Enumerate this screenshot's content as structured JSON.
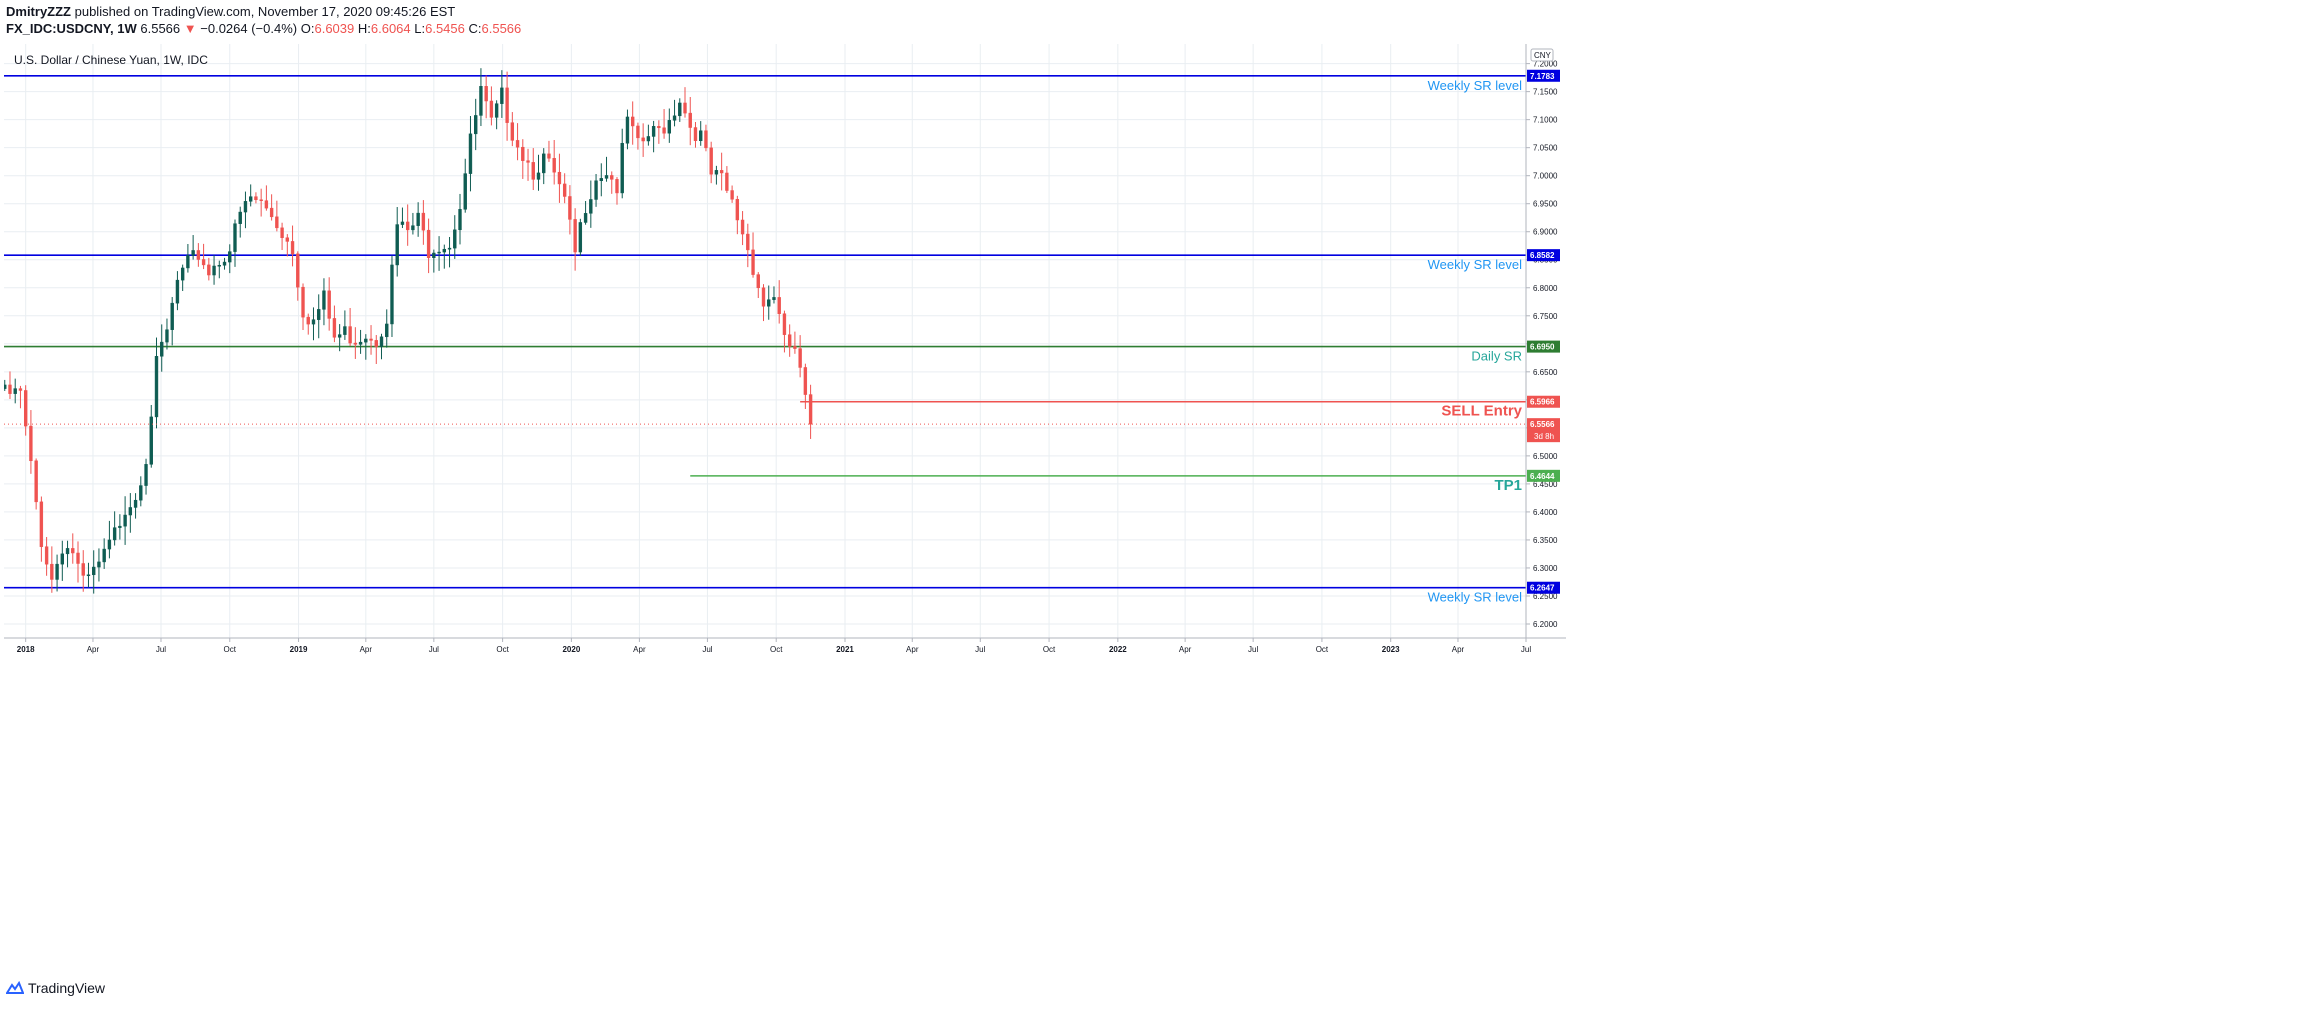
{
  "header": {
    "author": "DmitryZZZ",
    "published": " published on TradingView.com, November 17, 2020 09:45:26 EST",
    "symbol": "FX_IDC:USDCNY, 1W",
    "last_price": "6.5566",
    "change_arrow": "▼",
    "change": "−0.0264 (−0.4%)",
    "o_label": "O:",
    "o_value": "6.6039",
    "h_label": "H:",
    "h_value": "6.6064",
    "l_label": "L:",
    "l_value": "6.5456",
    "c_label": "C:",
    "c_value": "6.5566"
  },
  "footer": {
    "brand": "TradingView"
  },
  "colors": {
    "up": "#26a69a",
    "up_body": "#0f5c52",
    "down": "#ef5350",
    "weekly_sr": "#0000e0",
    "daily_sr": "#2e7d32",
    "sell": "#ef5350",
    "tp": "#4caf50",
    "label_blue": "#2196f3",
    "label_teal": "#26a69a",
    "grid": "#e9eef2"
  },
  "chart_data": {
    "type": "candlestick",
    "title": "U.S. Dollar / Chinese Yuan, 1W, IDC",
    "currency": "CNY",
    "timeframe": "1W",
    "y_range": [
      6.175,
      7.235
    ],
    "y_ticks": [
      "7.2000",
      "7.1500",
      "7.1000",
      "7.0500",
      "7.0000",
      "6.9500",
      "6.9000",
      "6.8500",
      "6.8000",
      "6.7500",
      "6.7000",
      "6.6500",
      "6.6000",
      "6.5500",
      "6.5000",
      "6.4500",
      "6.4000",
      "6.3500",
      "6.3000",
      "6.2500",
      "6.2000"
    ],
    "x_ticks": [
      "2018",
      "Apr",
      "Jul",
      "Oct",
      "2019",
      "Apr",
      "Jul",
      "Oct",
      "2020",
      "Apr",
      "Jul",
      "Oct",
      "2021",
      "Apr",
      "Jul",
      "Oct",
      "2022",
      "Apr",
      "Jul",
      "Oct",
      "2023",
      "Apr",
      "Jul"
    ],
    "close_path": [
      [
        "2017-12-25",
        6.61
      ],
      [
        "2018-01-08",
        6.48
      ],
      [
        "2018-01-22",
        6.35
      ],
      [
        "2018-02-05",
        6.28
      ],
      [
        "2018-02-19",
        6.34
      ],
      [
        "2018-03-05",
        6.33
      ],
      [
        "2018-03-19",
        6.27
      ],
      [
        "2018-04-02",
        6.29
      ],
      [
        "2018-04-16",
        6.32
      ],
      [
        "2018-04-30",
        6.36
      ],
      [
        "2018-05-14",
        6.41
      ],
      [
        "2018-05-28",
        6.43
      ],
      [
        "2018-06-11",
        6.5
      ],
      [
        "2018-06-25",
        6.66
      ],
      [
        "2018-07-09",
        6.72
      ],
      [
        "2018-07-23",
        6.81
      ],
      [
        "2018-08-06",
        6.84
      ],
      [
        "2018-08-20",
        6.86
      ],
      [
        "2018-09-03",
        6.83
      ],
      [
        "2018-09-17",
        6.85
      ],
      [
        "2018-10-01",
        6.87
      ],
      [
        "2018-10-15",
        6.93
      ],
      [
        "2018-10-29",
        6.96
      ],
      [
        "2018-11-12",
        6.95
      ],
      [
        "2018-11-26",
        6.93
      ],
      [
        "2018-12-10",
        6.9
      ],
      [
        "2018-12-24",
        6.87
      ],
      [
        "2019-01-07",
        6.76
      ],
      [
        "2019-01-21",
        6.74
      ],
      [
        "2019-02-04",
        6.78
      ],
      [
        "2019-02-18",
        6.71
      ],
      [
        "2019-03-04",
        6.72
      ],
      [
        "2019-03-18",
        6.71
      ],
      [
        "2019-04-01",
        6.72
      ],
      [
        "2019-04-15",
        6.71
      ],
      [
        "2019-04-29",
        6.75
      ],
      [
        "2019-05-13",
        6.91
      ],
      [
        "2019-05-27",
        6.9
      ],
      [
        "2019-06-10",
        6.92
      ],
      [
        "2019-06-24",
        6.87
      ],
      [
        "2019-07-08",
        6.88
      ],
      [
        "2019-07-22",
        6.88
      ],
      [
        "2019-08-05",
        6.95
      ],
      [
        "2019-08-19",
        7.06
      ],
      [
        "2019-09-02",
        7.15
      ],
      [
        "2019-09-16",
        7.09
      ],
      [
        "2019-09-30",
        7.14
      ],
      [
        "2019-10-14",
        7.08
      ],
      [
        "2019-10-28",
        7.04
      ],
      [
        "2019-11-11",
        7.01
      ],
      [
        "2019-11-25",
        7.03
      ],
      [
        "2019-12-09",
        7.0
      ],
      [
        "2019-12-23",
        6.95
      ],
      [
        "2020-01-06",
        6.86
      ],
      [
        "2020-01-20",
        6.95
      ],
      [
        "2020-02-03",
        7.0
      ],
      [
        "2020-02-17",
        7.01
      ],
      [
        "2020-03-02",
        6.98
      ],
      [
        "2020-03-16",
        7.1
      ],
      [
        "2020-03-30",
        7.05
      ],
      [
        "2020-04-13",
        7.07
      ],
      [
        "2020-04-27",
        7.08
      ],
      [
        "2020-05-11",
        7.1
      ],
      [
        "2020-05-25",
        7.14
      ],
      [
        "2020-06-08",
        7.09
      ],
      [
        "2020-06-22",
        7.07
      ],
      [
        "2020-07-06",
        7.0
      ],
      [
        "2020-07-20",
        6.99
      ],
      [
        "2020-08-03",
        6.95
      ],
      [
        "2020-08-17",
        6.9
      ],
      [
        "2020-08-31",
        6.84
      ],
      [
        "2020-09-14",
        6.77
      ],
      [
        "2020-09-28",
        6.79
      ],
      [
        "2020-10-12",
        6.7
      ],
      [
        "2020-10-26",
        6.69
      ],
      [
        "2020-11-09",
        6.6
      ],
      [
        "2020-11-16",
        6.5566
      ]
    ],
    "levels": [
      {
        "name": "Weekly SR level",
        "value": 7.1783,
        "value_label": "7.1783",
        "style": "weekly",
        "from_start": true
      },
      {
        "name": "Weekly SR level",
        "value": 6.8582,
        "value_label": "6.8582",
        "style": "weekly",
        "from_start": true
      },
      {
        "name": "Daily SR",
        "value": 6.695,
        "value_label": "6.6950",
        "style": "daily",
        "from_start": true
      },
      {
        "name": "SELL Entry",
        "value": 6.5966,
        "value_label": "6.5966",
        "style": "sell",
        "from_date": "2020-11-02"
      },
      {
        "name": "TP1",
        "value": 6.4644,
        "value_label": "6.4644",
        "style": "tp",
        "from_date": "2020-06-08"
      },
      {
        "name": "Weekly SR level",
        "value": 6.2647,
        "value_label": "6.2647",
        "style": "weekly",
        "from_start": true
      }
    ],
    "current": {
      "value": 6.5566,
      "value_label": "6.5566",
      "countdown": "3d 8h"
    }
  }
}
